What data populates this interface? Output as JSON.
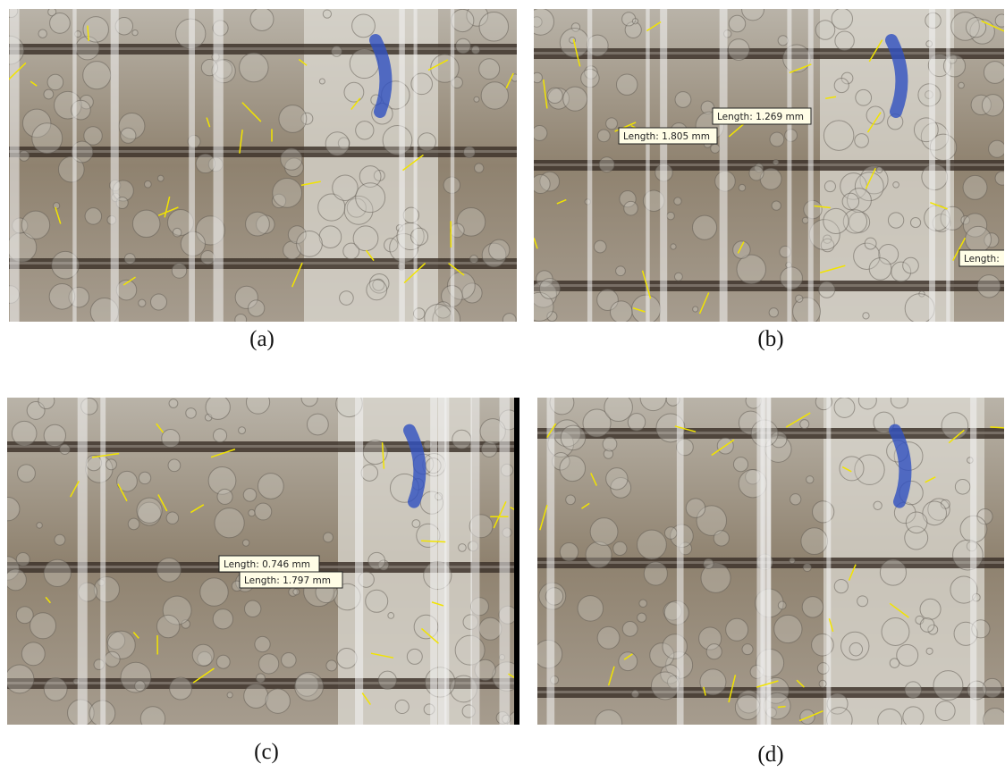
{
  "panels": [
    {
      "label": "(a)",
      "annotations": []
    },
    {
      "label": "(b)",
      "annotations": [
        "Length: 1.269 mm",
        "Length: 1.805 mm",
        "Length:"
      ]
    },
    {
      "label": "(c)",
      "annotations": [
        "Length: 0.746 mm",
        "Length: 1.797 mm"
      ]
    },
    {
      "label": "(d)",
      "annotations": []
    }
  ]
}
